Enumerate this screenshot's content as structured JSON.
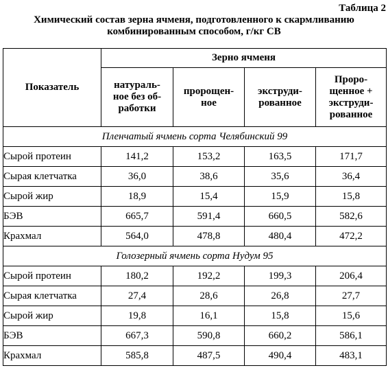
{
  "table_number": "Таблица 2",
  "caption_line1": "Химический состав зерна ячменя, подготовленного к скармливанию",
  "caption_line2": "комбинированным способом, г/кг СВ",
  "header": {
    "indicator": "Показатель",
    "group": "Зерно ячменя",
    "col1_lines": [
      "натураль-",
      "ное без об-",
      "работки"
    ],
    "col2_lines": [
      "пророщен-",
      "ное"
    ],
    "col3_lines": [
      "экструди-",
      "рованное"
    ],
    "col4_lines": [
      "Проро-",
      "щенное +",
      "экструди-",
      "рованное"
    ]
  },
  "sections": [
    {
      "title": "Пленчатый ячмень сорта Челябинский 99",
      "rows": [
        {
          "name": "Сырой протеин",
          "values": [
            "141,2",
            "153,2",
            "163,5",
            "171,7"
          ]
        },
        {
          "name": "Сырая клетчатка",
          "values": [
            "36,0",
            "38,6",
            "35,6",
            "36,4"
          ]
        },
        {
          "name": "Сырой жир",
          "values": [
            "18,9",
            "15,4",
            "15,9",
            "15,8"
          ]
        },
        {
          "name": "БЭВ",
          "values": [
            "665,7",
            "591,4",
            "660,5",
            "582,6"
          ]
        },
        {
          "name": "Крахмал",
          "values": [
            "564,0",
            "478,8",
            "480,4",
            "472,2"
          ]
        }
      ]
    },
    {
      "title": "Голозерный ячмень сорта Нудум 95",
      "rows": [
        {
          "name": "Сырой протеин",
          "values": [
            "180,2",
            "192,2",
            "199,3",
            "206,4"
          ]
        },
        {
          "name": "Сырая клетчатка",
          "values": [
            "27,4",
            "28,6",
            "26,8",
            "27,7"
          ]
        },
        {
          "name": "Сырой жир",
          "values": [
            "19,8",
            "16,1",
            "15,8",
            "15,6"
          ]
        },
        {
          "name": "БЭВ",
          "values": [
            "667,3",
            "590,8",
            "660,2",
            "586,1"
          ]
        },
        {
          "name": "Крахмал",
          "values": [
            "585,8",
            "487,5",
            "490,4",
            "483,1"
          ]
        }
      ]
    }
  ]
}
